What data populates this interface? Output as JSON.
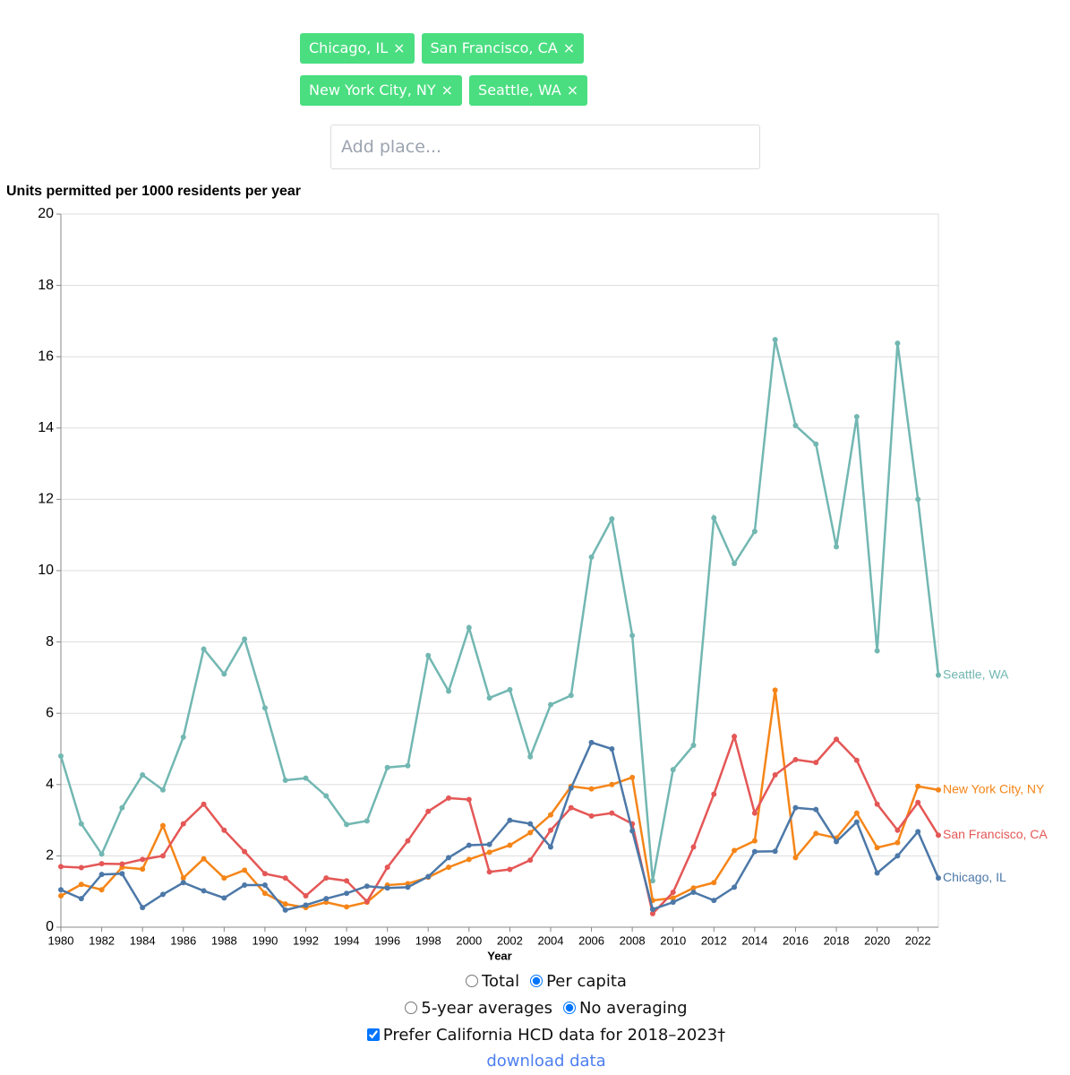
{
  "filters": {
    "chips": [
      "Chicago, IL",
      "San Francisco, CA",
      "New York City, NY",
      "Seattle, WA"
    ],
    "close_icon": "×"
  },
  "search": {
    "placeholder": "Add place..."
  },
  "chart_data": {
    "type": "line",
    "y_axis_title": "Units permitted per 1000 residents per year",
    "x_axis_title": "Year",
    "x": [
      1980,
      1981,
      1982,
      1983,
      1984,
      1985,
      1986,
      1987,
      1988,
      1989,
      1990,
      1991,
      1992,
      1993,
      1994,
      1995,
      1996,
      1997,
      1998,
      1999,
      2000,
      2001,
      2002,
      2003,
      2004,
      2005,
      2006,
      2007,
      2008,
      2009,
      2010,
      2011,
      2012,
      2013,
      2014,
      2015,
      2016,
      2017,
      2018,
      2019,
      2020,
      2021,
      2022,
      2023
    ],
    "xlim": [
      1980,
      2023
    ],
    "xticks": [
      1980,
      1982,
      1984,
      1986,
      1988,
      1990,
      1992,
      1994,
      1996,
      1998,
      2000,
      2002,
      2004,
      2006,
      2008,
      2010,
      2012,
      2014,
      2016,
      2018,
      2020,
      2022
    ],
    "ylim": [
      0,
      20
    ],
    "yticks": [
      0,
      2,
      4,
      6,
      8,
      10,
      12,
      14,
      16,
      18,
      20
    ],
    "grid": true,
    "series": [
      {
        "name": "Seattle, WA",
        "color": "#72b7b2",
        "values": [
          4.8,
          2.9,
          2.05,
          3.35,
          4.27,
          3.85,
          5.33,
          7.8,
          7.1,
          8.08,
          6.15,
          4.12,
          4.18,
          3.68,
          2.88,
          2.98,
          4.48,
          4.53,
          7.62,
          6.62,
          8.4,
          6.43,
          6.66,
          4.78,
          6.24,
          6.5,
          10.38,
          11.45,
          8.18,
          1.3,
          4.42,
          5.1,
          11.48,
          10.2,
          11.1,
          16.48,
          14.07,
          13.55,
          10.67,
          14.32,
          7.75,
          16.38,
          12.0,
          7.07
        ]
      },
      {
        "name": "New York City, NY",
        "color": "#f58518",
        "values": [
          0.88,
          1.2,
          1.05,
          1.68,
          1.63,
          2.85,
          1.38,
          1.92,
          1.38,
          1.6,
          0.95,
          0.65,
          0.55,
          0.7,
          0.57,
          0.7,
          1.18,
          1.22,
          1.4,
          1.68,
          1.9,
          2.1,
          2.3,
          2.65,
          3.15,
          3.95,
          3.88,
          4.0,
          4.2,
          0.75,
          0.82,
          1.1,
          1.25,
          2.15,
          2.42,
          6.65,
          1.95,
          2.63,
          2.5,
          3.2,
          2.23,
          2.37,
          3.95,
          3.85
        ]
      },
      {
        "name": "San Francisco, CA",
        "color": "#e45756",
        "values": [
          1.7,
          1.67,
          1.78,
          1.77,
          1.9,
          2.0,
          2.9,
          3.45,
          2.72,
          2.12,
          1.5,
          1.38,
          0.88,
          1.38,
          1.3,
          0.72,
          1.68,
          2.42,
          3.25,
          3.62,
          3.58,
          1.55,
          1.62,
          1.88,
          2.72,
          3.35,
          3.12,
          3.2,
          2.9,
          0.38,
          0.98,
          2.25,
          3.73,
          5.35,
          3.2,
          4.27,
          4.7,
          4.62,
          5.27,
          4.68,
          3.45,
          2.72,
          3.5,
          2.58
        ]
      },
      {
        "name": "Chicago, IL",
        "color": "#4c78a8",
        "values": [
          1.05,
          0.8,
          1.48,
          1.5,
          0.55,
          0.92,
          1.25,
          1.02,
          0.82,
          1.18,
          1.18,
          0.48,
          0.62,
          0.8,
          0.95,
          1.15,
          1.1,
          1.12,
          1.42,
          1.95,
          2.3,
          2.32,
          3.0,
          2.9,
          2.25,
          3.9,
          5.18,
          5.0,
          2.7,
          0.5,
          0.7,
          0.98,
          0.75,
          1.12,
          2.12,
          2.13,
          3.35,
          3.3,
          2.4,
          2.95,
          1.52,
          2.0,
          2.68,
          1.38
        ]
      }
    ]
  },
  "controls": {
    "mode_options": [
      "Total",
      "Per capita"
    ],
    "mode_selected": 1,
    "averaging_options": [
      "5-year averages",
      "No averaging"
    ],
    "averaging_selected": 1,
    "checkbox_label": "Prefer California HCD data for 2018–2023†",
    "checkbox_checked": true,
    "link": "download data"
  }
}
